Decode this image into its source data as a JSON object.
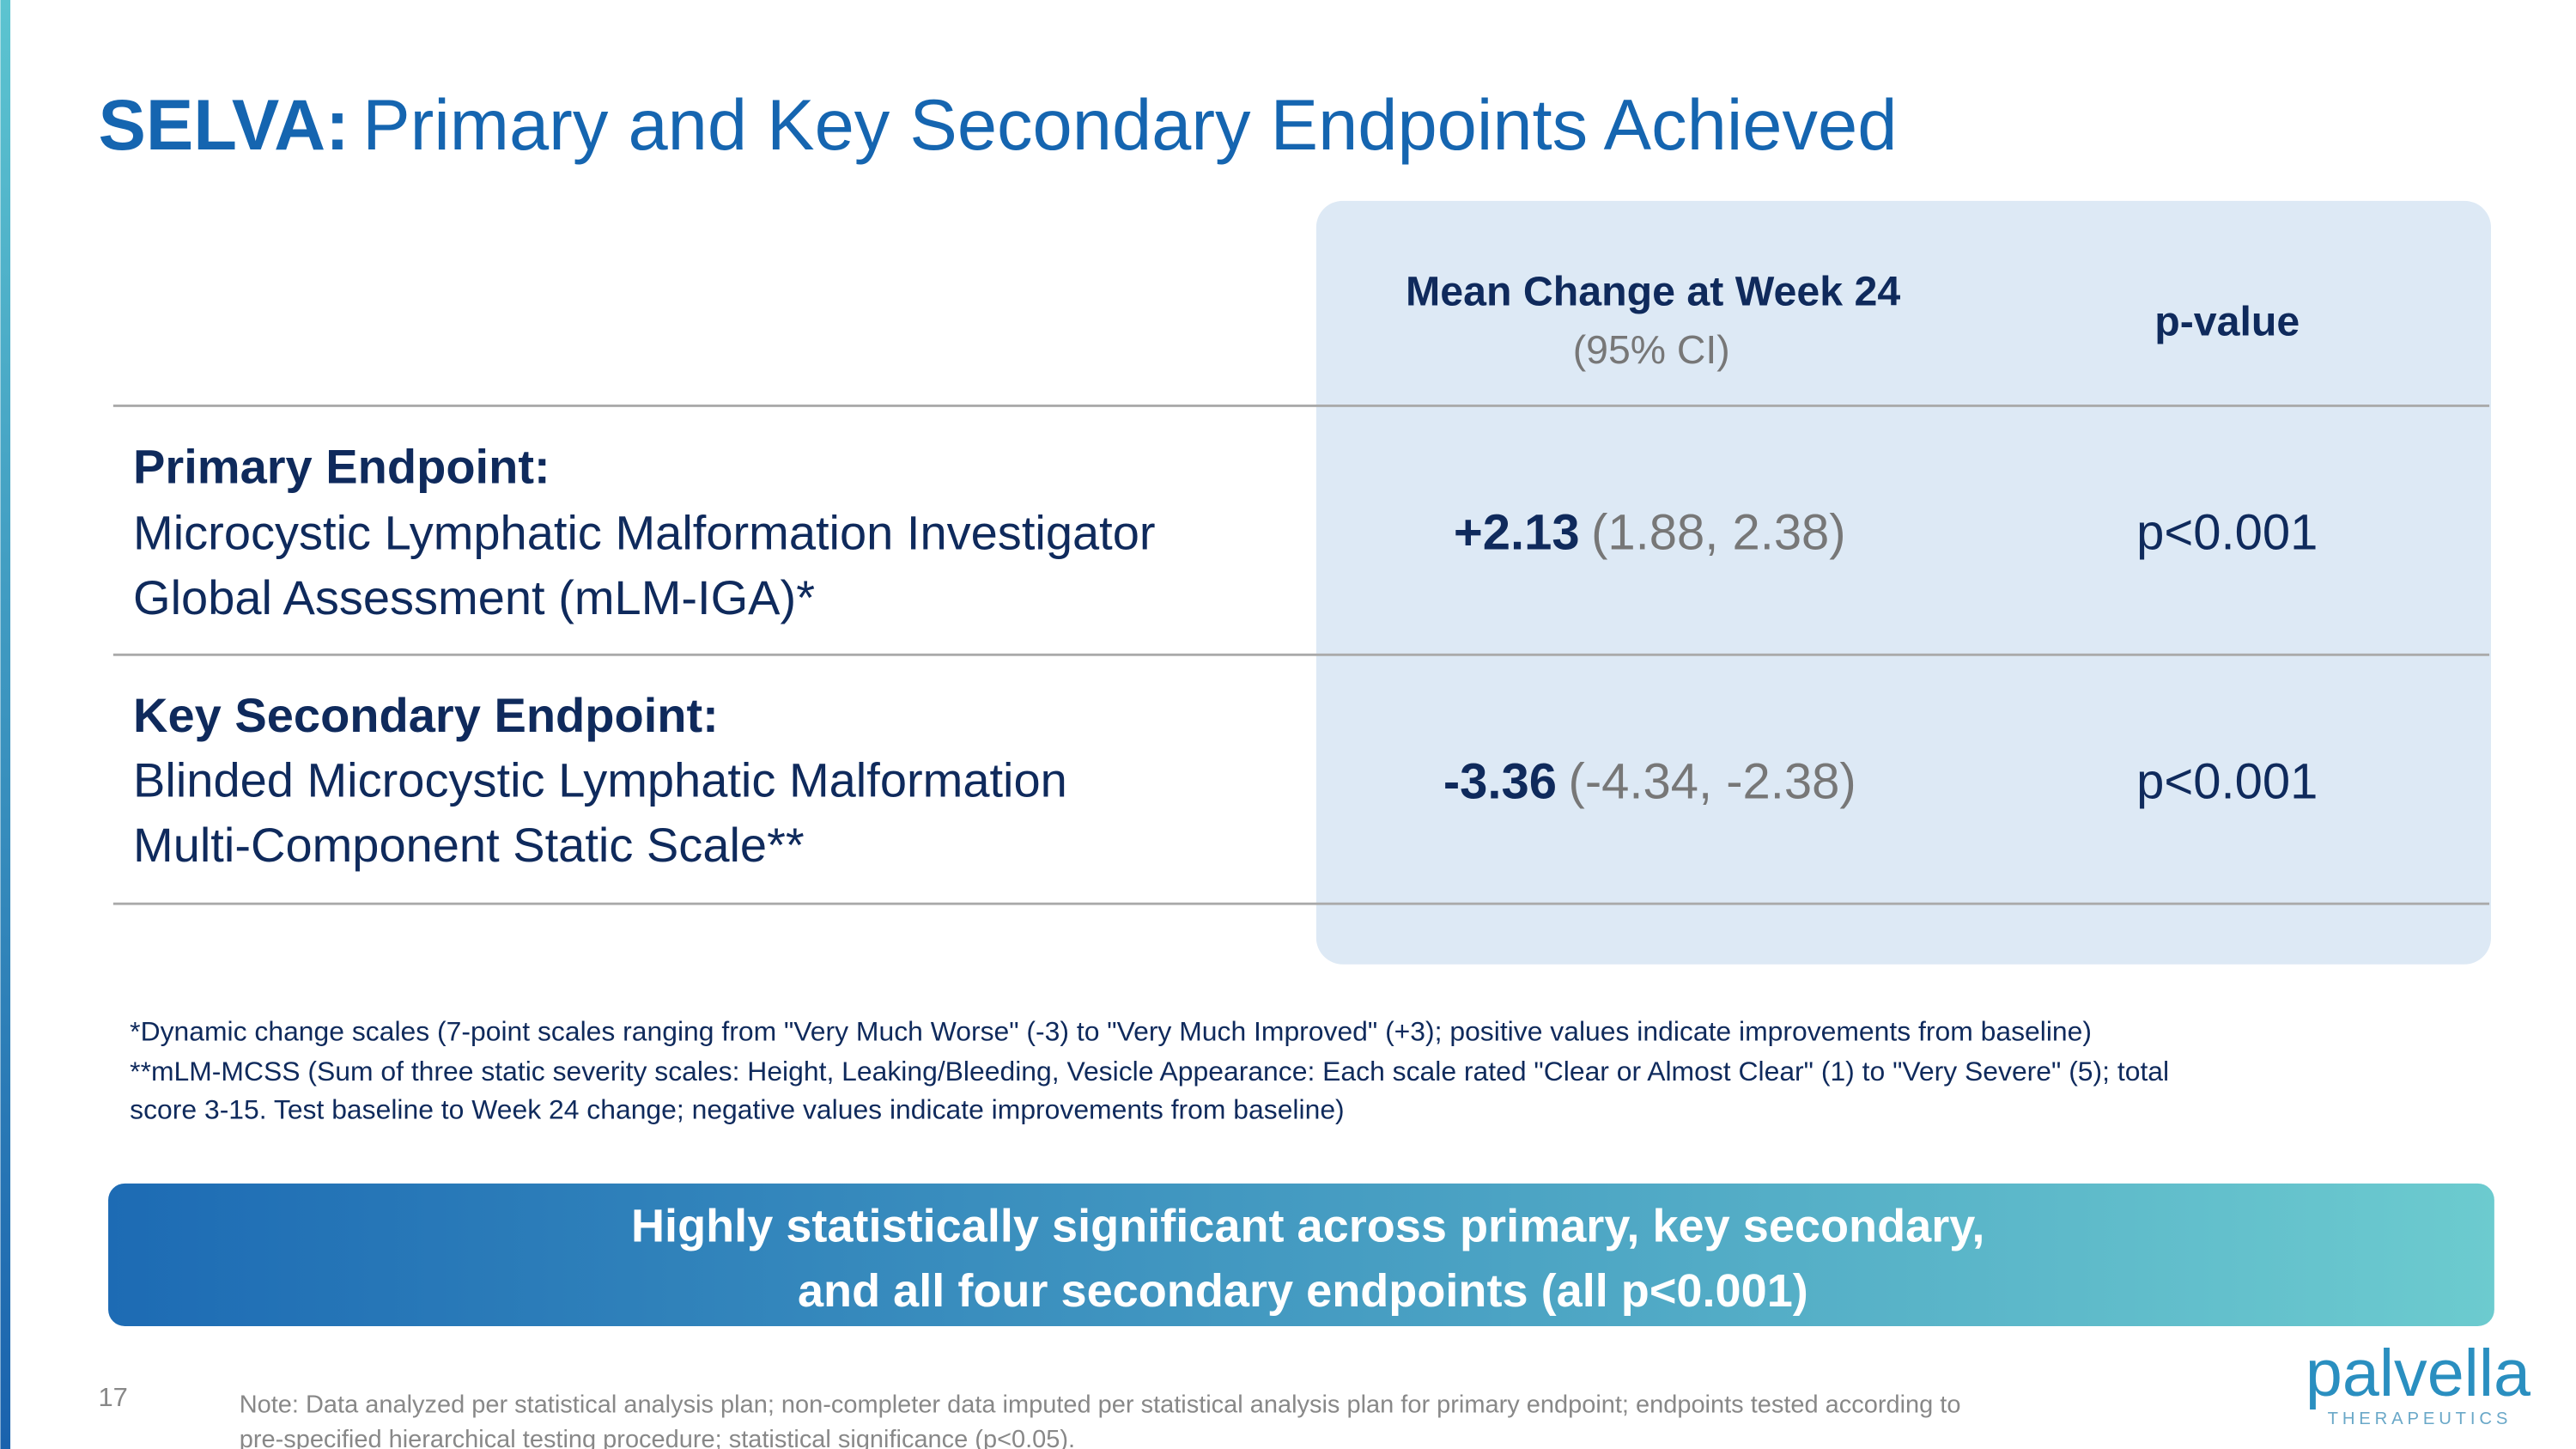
{
  "header": {
    "title_prefix": "SELVA:",
    "title": "Primary and Key Secondary Endpoints Achieved"
  },
  "table": {
    "columns": [
      {
        "label": "Mean Change at Week 24",
        "sublabel": "(95% CI)"
      },
      {
        "label": "p-value"
      }
    ],
    "rows": [
      {
        "label": "Primary Endpoint:",
        "description": [
          "Microcystic Lymphatic Malformation Investigator",
          "Global Assessment (mLM-IGA)*"
        ],
        "estimate": "+2.13",
        "ci": "(1.88, 2.38)",
        "p_value": "p<0.001"
      },
      {
        "label": "Key Secondary Endpoint:",
        "description": [
          "Blinded Microcystic Lymphatic Malformation",
          "Multi-Component Static Scale**"
        ],
        "estimate": "-3.36",
        "ci": "(-4.34, -2.38)",
        "p_value": "p<0.001"
      }
    ]
  },
  "footnotes": [
    "*Dynamic change scales (7-point scales ranging from \"Very Much Worse\" (-3) to \"Very Much Improved\" (+3); positive values indicate improvements from baseline)",
    "**mLM-MCSS (Sum of three static severity scales: Height, Leaking/Bleeding, Vesicle Appearance: Each scale rated \"Clear or Almost Clear\" (1) to \"Very Severe\" (5); total",
    "score 3-15. Test baseline to Week 24 change; negative values indicate improvements from baseline)"
  ],
  "callout": [
    "Highly statistically significant across primary, key secondary,",
    "and all four secondary endpoints (all p<0.001)"
  ],
  "page_number": "17",
  "note": [
    "Note: Data analyzed per statistical analysis plan; non-completer data imputed per statistical analysis plan for primary endpoint; endpoints tested according to",
    "pre-specified hierarchical testing procedure; statistical significance (p<0.05)."
  ],
  "logo": {
    "name": "palvella",
    "tagline": "THERAPEUTICS"
  }
}
